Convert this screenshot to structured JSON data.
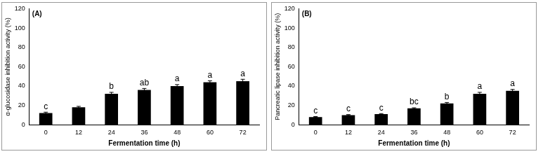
{
  "chart_data": [
    {
      "type": "bar",
      "title": "(A)",
      "x_label": "Fermentation time (h)",
      "y_label": "α-glucosidase inhibition activity (%)",
      "categories": [
        "0",
        "12",
        "24",
        "36",
        "48",
        "60",
        "72"
      ],
      "values": [
        12,
        18,
        32,
        36,
        40,
        44,
        45
      ],
      "errors": [
        1,
        1,
        1.5,
        1.5,
        1.5,
        1.5,
        2
      ],
      "annotations": [
        "c",
        null,
        "b",
        "ab",
        "a",
        "a",
        "a"
      ],
      "color": "#000000",
      "ylim": [
        0,
        120
      ],
      "yticks": [
        0,
        20,
        40,
        60,
        80,
        100,
        120
      ],
      "grid": false
    },
    {
      "type": "bar",
      "title": "(B)",
      "x_label": "Fermentation time (h)",
      "y_label": "Pancreatic lipase inhibition activity (%)",
      "categories": [
        "0",
        "12",
        "24",
        "36",
        "48",
        "60",
        "72"
      ],
      "values": [
        8,
        10,
        11,
        17,
        22,
        32,
        35
      ],
      "errors": [
        0.5,
        0.5,
        0.5,
        0.5,
        1,
        1.5,
        1.5
      ],
      "annotations": [
        "c",
        "c",
        "c",
        "bc",
        "b",
        "a",
        "a"
      ],
      "color": "#000000",
      "ylim": [
        0,
        120
      ],
      "yticks": [
        0,
        20,
        40,
        60,
        80,
        100,
        120
      ],
      "grid": false
    }
  ]
}
